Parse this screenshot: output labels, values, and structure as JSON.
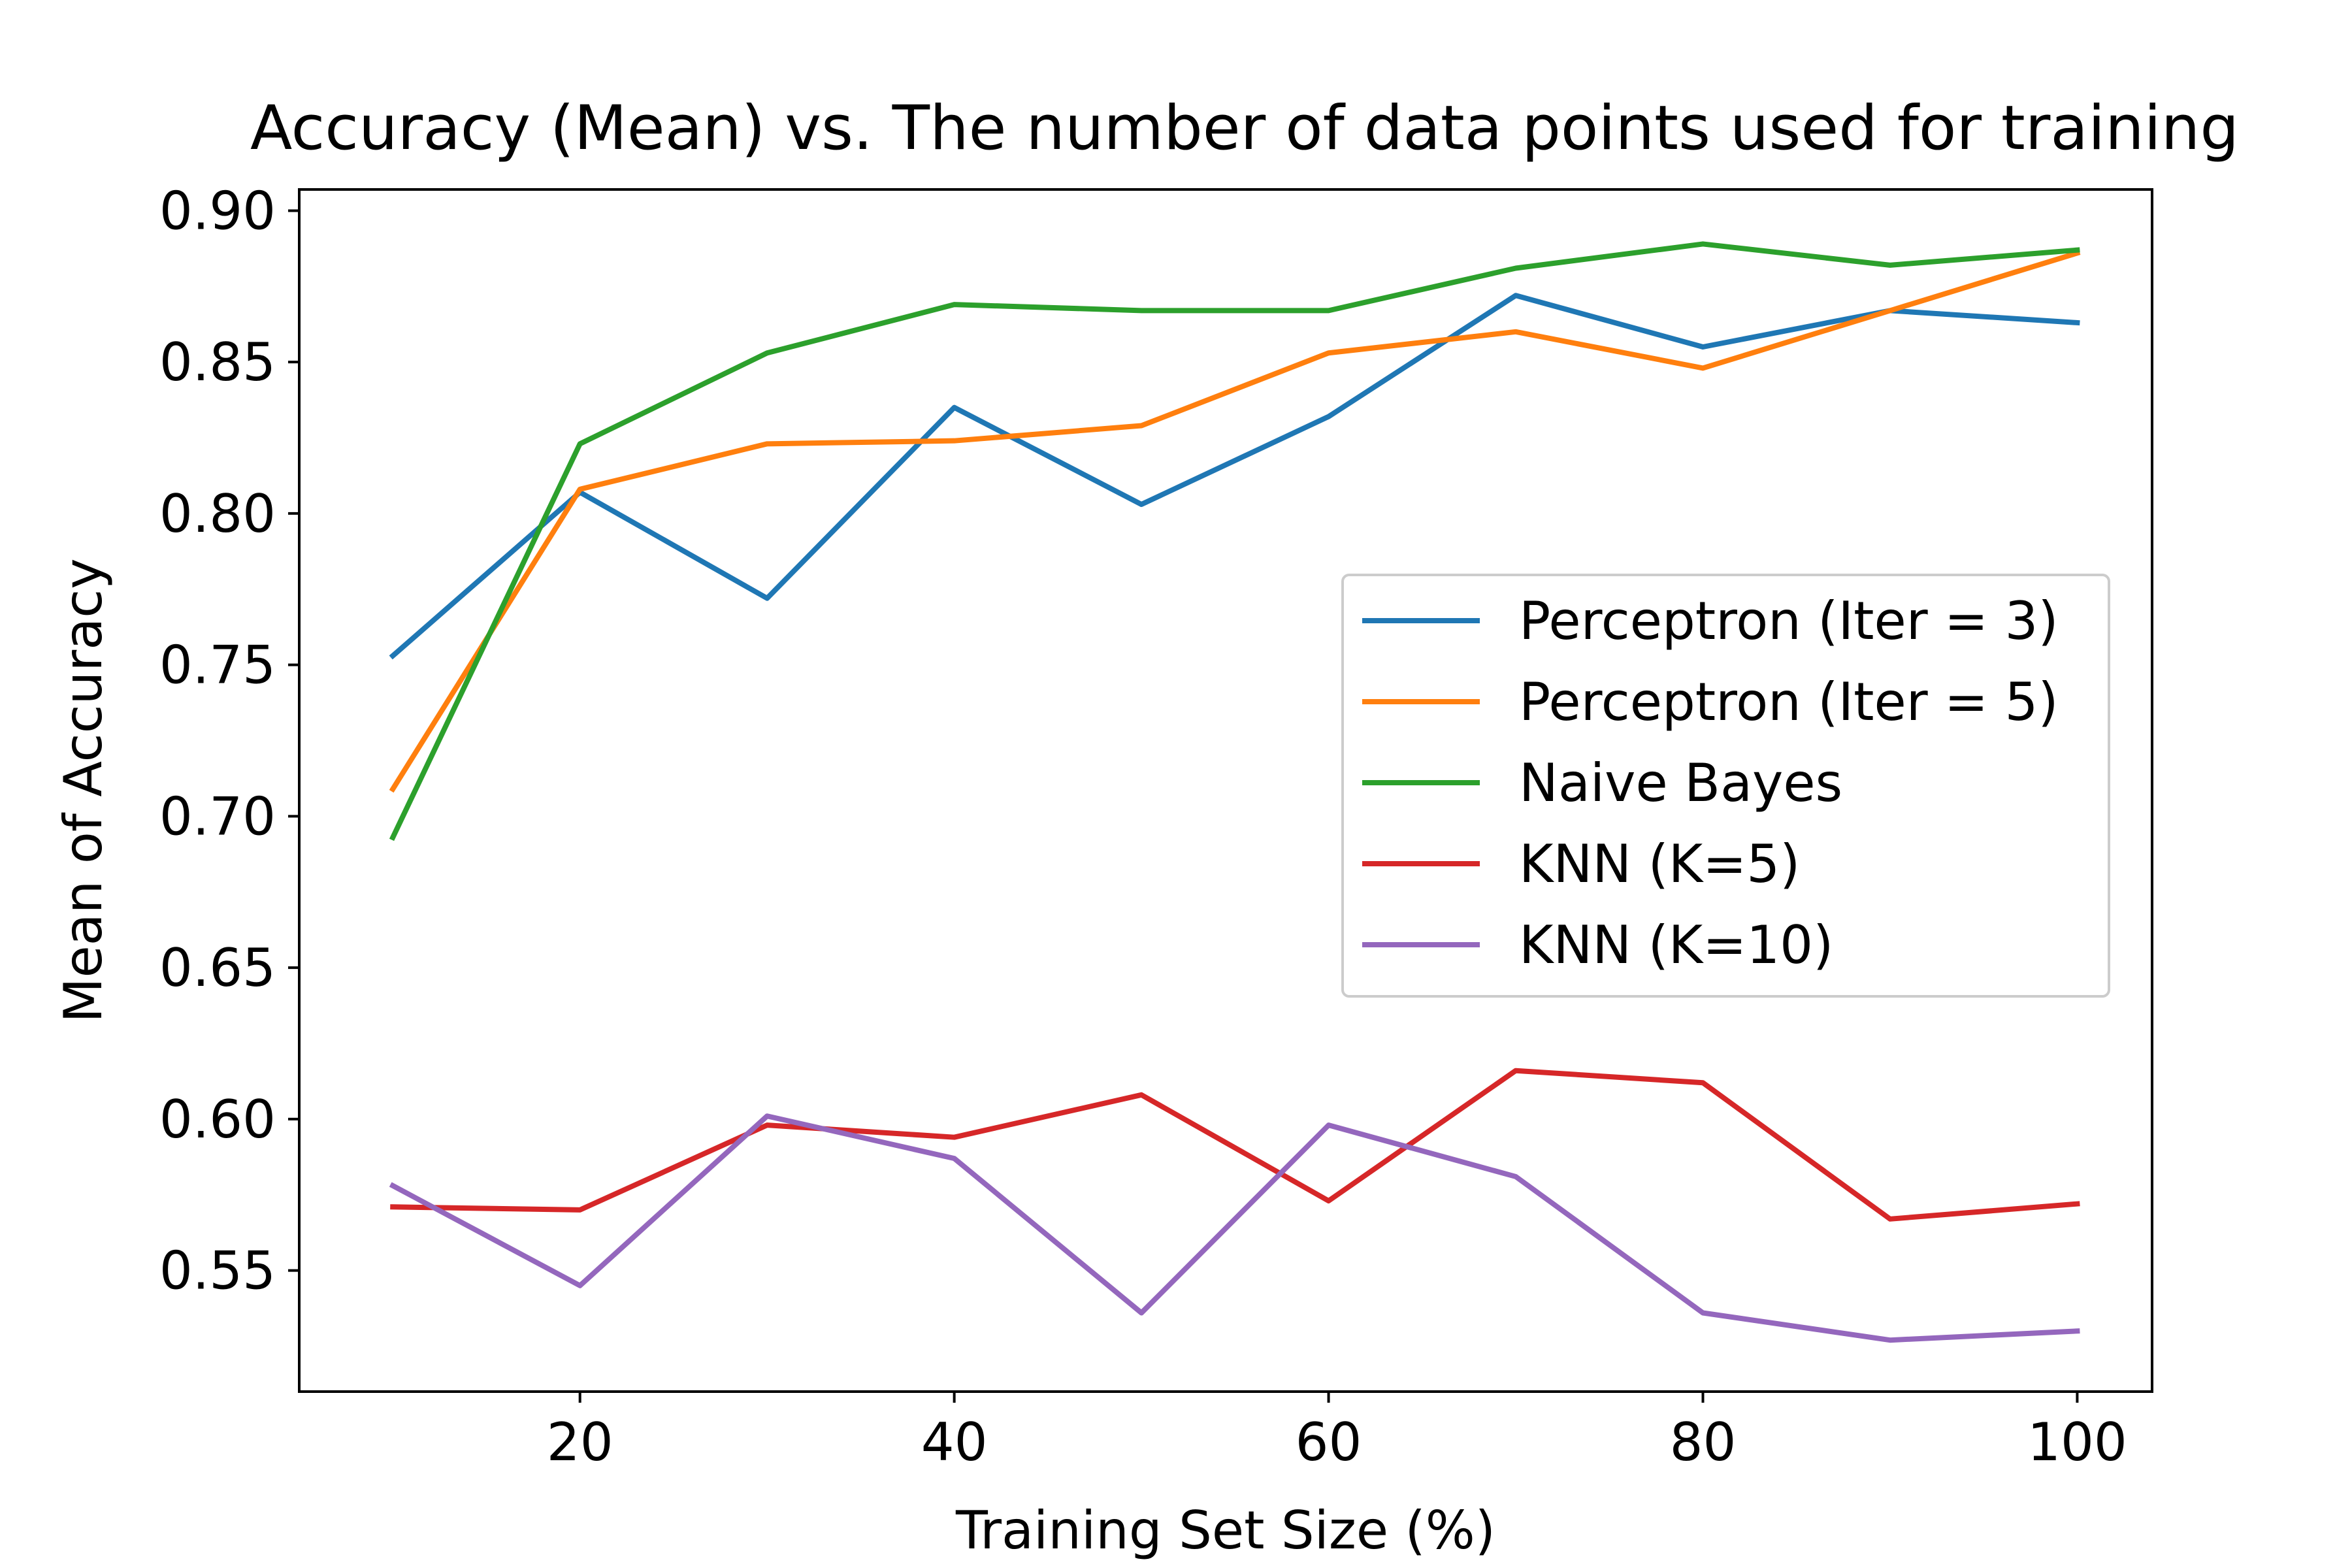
{
  "chart_data": {
    "type": "line",
    "title": "Accuracy (Mean) vs. The number of data points used for training",
    "xlabel": "Training Set Size (%)",
    "ylabel": "Mean of Accuracy",
    "xlim": [
      5,
      104
    ],
    "ylim": [
      0.51,
      0.907
    ],
    "xticks": [
      20,
      40,
      60,
      80,
      100
    ],
    "yticks": [
      0.55,
      0.6,
      0.65,
      0.7,
      0.75,
      0.8,
      0.85,
      0.9
    ],
    "xtick_labels": [
      "20",
      "40",
      "60",
      "80",
      "100"
    ],
    "ytick_labels": [
      "0.55",
      "0.60",
      "0.65",
      "0.70",
      "0.75",
      "0.80",
      "0.85",
      "0.90"
    ],
    "grid": false,
    "legend_position": "center-right",
    "x": [
      10,
      20,
      30,
      40,
      50,
      60,
      70,
      80,
      90,
      100
    ],
    "series": [
      {
        "name": "Perceptron (Iter = 3)",
        "color": "#1f77b4",
        "values": [
          0.753,
          0.807,
          0.772,
          0.835,
          0.803,
          0.832,
          0.872,
          0.855,
          0.867,
          0.863
        ]
      },
      {
        "name": "Perceptron (Iter = 5)",
        "color": "#ff7f0e",
        "values": [
          0.709,
          0.808,
          0.823,
          0.824,
          0.829,
          0.853,
          0.86,
          0.848,
          0.867,
          0.886
        ]
      },
      {
        "name": "Naive Bayes",
        "color": "#2ca02c",
        "values": [
          0.693,
          0.823,
          0.853,
          0.869,
          0.867,
          0.867,
          0.881,
          0.889,
          0.882,
          0.887
        ]
      },
      {
        "name": "KNN (K=5)",
        "color": "#d62728",
        "values": [
          0.571,
          0.57,
          0.598,
          0.594,
          0.608,
          0.573,
          0.616,
          0.612,
          0.567,
          0.572
        ]
      },
      {
        "name": "KNN (K=10)",
        "color": "#9467bd",
        "values": [
          0.578,
          0.545,
          0.601,
          0.587,
          0.536,
          0.598,
          0.581,
          0.536,
          0.527,
          0.53
        ]
      }
    ]
  }
}
